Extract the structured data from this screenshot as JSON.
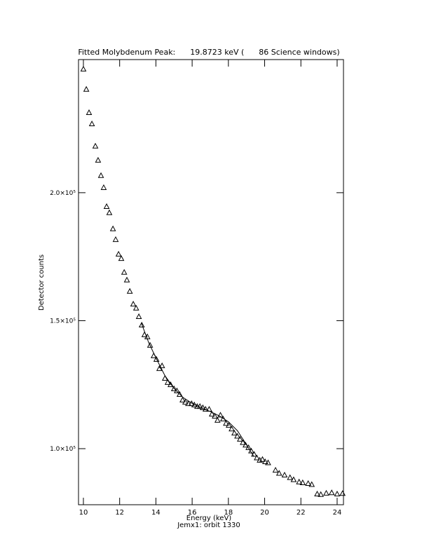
{
  "chart_data": {
    "type": "scatter",
    "title": "Fitted Molybdenum Peak:      19.8723 keV (      86 Science windows)",
    "x_label": "Energy (keV)",
    "y_label": "Detector counts",
    "subtitle": "Jemx1: orbit 1330",
    "xlim": [
      9.73,
      24.35
    ],
    "ylim": [
      78100,
      252000
    ],
    "xticks": [
      10,
      12,
      14,
      16,
      18,
      20,
      22,
      24
    ],
    "yticks": [
      {
        "value": 100000,
        "label": "1.0×10⁵"
      },
      {
        "value": 150000,
        "label": "1.5×10⁵"
      },
      {
        "value": 200000,
        "label": "2.0×10⁵"
      }
    ],
    "color": "#000000",
    "series": [
      {
        "marker": "triangle",
        "x": [
          10.0,
          10.16,
          10.31,
          10.47,
          10.66,
          10.81,
          10.97,
          11.12,
          11.28,
          11.43,
          11.63,
          11.78,
          11.94,
          12.09,
          12.25,
          12.4,
          12.56,
          12.75,
          12.91,
          13.06,
          13.22,
          13.37,
          13.53,
          13.68,
          13.88,
          14.03,
          14.19,
          14.34,
          14.5,
          14.65,
          14.81,
          15.0,
          15.16,
          15.31,
          15.47,
          15.62,
          15.78,
          15.97,
          16.12,
          16.28,
          16.43,
          16.59,
          16.74,
          16.94,
          17.09,
          17.25,
          17.4,
          17.56,
          17.71,
          17.87,
          18.02,
          18.18,
          18.33,
          18.49,
          18.64,
          18.8,
          18.95,
          19.11,
          19.26,
          19.42,
          19.57,
          19.73,
          19.88,
          20.03,
          20.19,
          20.6,
          20.8,
          21.1,
          21.4,
          21.6,
          21.9,
          22.1,
          22.4,
          22.6,
          22.9,
          23.1,
          23.4,
          23.7,
          24.0,
          24.3
        ],
        "values": [
          248200,
          240300,
          231200,
          226800,
          218100,
          212600,
          206600,
          201900,
          194500,
          192100,
          185800,
          181600,
          175900,
          174200,
          168800,
          165800,
          161400,
          156400,
          154800,
          151500,
          148200,
          144400,
          143600,
          140300,
          136200,
          134800,
          131200,
          132300,
          127400,
          125800,
          124900,
          123300,
          122500,
          121100,
          118900,
          118100,
          117500,
          117500,
          117000,
          116400,
          116400,
          115900,
          115300,
          115300,
          113400,
          112600,
          111000,
          113000,
          111500,
          109800,
          109000,
          107600,
          106000,
          104800,
          103600,
          102300,
          101300,
          100300,
          99000,
          97700,
          96300,
          95400,
          95700,
          94800,
          94400,
          91500,
          90300,
          89600,
          88600,
          87800,
          86900,
          86600,
          86300,
          85900,
          82200,
          82000,
          82500,
          82700,
          82200,
          82400
        ]
      },
      {
        "marker": "line",
        "x": [
          13.2,
          13.6,
          14.0,
          14.5,
          15.0,
          15.5,
          16.0,
          16.5,
          17.0,
          17.5,
          18.0,
          18.5,
          19.0,
          19.4
        ],
        "values": [
          149000,
          141500,
          135500,
          128500,
          123500,
          120000,
          117700,
          116000,
          114500,
          112800,
          110500,
          107000,
          101500,
          97000
        ]
      }
    ]
  }
}
